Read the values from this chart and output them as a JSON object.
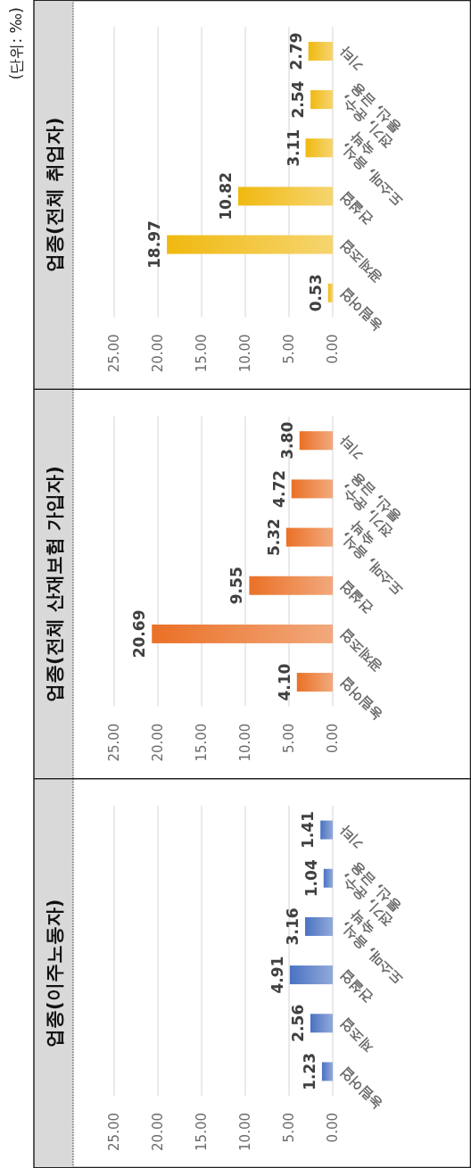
{
  "chart_data": [
    {
      "type": "bar",
      "orientation": "horizontal",
      "title": "업종(이주노동자)",
      "categories": [
        "기타",
        "전기, 운수, 통신, 금융",
        "도소매, 음식, 숙박",
        "건설업",
        "제조업",
        "농림어업"
      ],
      "values": [
        1.41,
        1.04,
        3.16,
        4.91,
        2.56,
        1.23
      ],
      "value_labels": [
        "1.41",
        "1.04",
        "3.16",
        "4.91",
        "2.56",
        "1.23"
      ],
      "color": "#4a72c2",
      "xlim": [
        25,
        0
      ],
      "xticks": [
        {
          "value": 25,
          "label": "25.00"
        },
        {
          "value": 20,
          "label": "20.00"
        },
        {
          "value": 15,
          "label": "15.00"
        },
        {
          "value": 10,
          "label": "10.00"
        },
        {
          "value": 5,
          "label": "5.00"
        },
        {
          "value": 0,
          "label": "0.00"
        }
      ],
      "grid": "x"
    },
    {
      "type": "bar",
      "orientation": "horizontal",
      "title": "업종(전체 산재보험 가입자)",
      "categories": [
        "기타",
        "전기, 운수, 통신, 금융",
        "도소매, 음식, 숙박",
        "건설업",
        "광제조업",
        "농림어업"
      ],
      "values": [
        3.8,
        4.72,
        5.32,
        9.55,
        20.69,
        4.1
      ],
      "value_labels": [
        "3.80",
        "4.72",
        "5.32",
        "9.55",
        "20.69",
        "4.10"
      ],
      "color": "#ea7026",
      "xlim": [
        25,
        0
      ],
      "xticks": [
        {
          "value": 25,
          "label": "25.00"
        },
        {
          "value": 20,
          "label": "20.00"
        },
        {
          "value": 15,
          "label": "15.00"
        },
        {
          "value": 10,
          "label": "10.00"
        },
        {
          "value": 5,
          "label": "5.00"
        },
        {
          "value": 0,
          "label": "0.00"
        }
      ],
      "grid": "x"
    },
    {
      "type": "bar",
      "orientation": "horizontal",
      "title": "업종(전체 취업자)",
      "categories": [
        "기타",
        "전기, 운수, 통신, 금융",
        "도소매, 음식, 숙박",
        "건설업",
        "광제조업",
        "농림어업"
      ],
      "values": [
        2.79,
        2.54,
        3.11,
        10.82,
        18.97,
        0.53
      ],
      "value_labels": [
        "2.79",
        "2.54",
        "3.11",
        "10.82",
        "18.97",
        "0.53"
      ],
      "color": "#f0b910",
      "xlim": [
        25,
        0
      ],
      "xticks": [
        {
          "value": 25,
          "label": "25.00"
        },
        {
          "value": 20,
          "label": "20.00"
        },
        {
          "value": 15,
          "label": "15.00"
        },
        {
          "value": 10,
          "label": "10.00"
        },
        {
          "value": 5,
          "label": "5.00"
        },
        {
          "value": 0,
          "label": "0.00"
        }
      ],
      "grid": "x",
      "annotations": [
        "(단위: ‰)"
      ]
    }
  ]
}
